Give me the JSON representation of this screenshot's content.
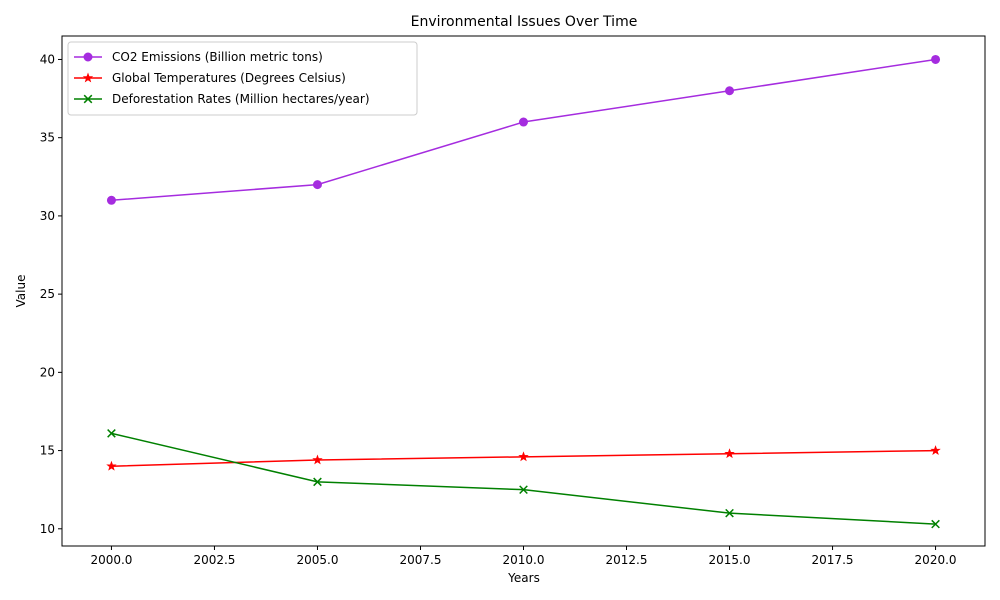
{
  "chart_data": {
    "type": "line",
    "title": "Environmental Issues Over Time",
    "xlabel": "Years",
    "ylabel": "Value",
    "x": [
      2000,
      2005,
      2010,
      2015,
      2020
    ],
    "xlim": [
      1998.8,
      2021.2
    ],
    "ylim": [
      8.9,
      41.5
    ],
    "x_ticks": [
      2000,
      2002.5,
      2005,
      2007.5,
      2010,
      2012.5,
      2015,
      2017.5,
      2020
    ],
    "x_tick_labels": [
      "2000.0",
      "2002.5",
      "2005.0",
      "2007.5",
      "2010.0",
      "2012.5",
      "2015.0",
      "2017.5",
      "2020.0"
    ],
    "y_ticks": [
      10,
      15,
      20,
      25,
      30,
      35,
      40
    ],
    "y_tick_labels": [
      "10",
      "15",
      "20",
      "25",
      "30",
      "35",
      "40"
    ],
    "grid": false,
    "legend_position": "top-left",
    "series": [
      {
        "name": "CO2 Emissions (Billion metric tons)",
        "values": [
          31,
          32,
          36,
          38,
          40
        ],
        "color": "#a52cdf",
        "marker": "circle"
      },
      {
        "name": "Global Temperatures (Degrees Celsius)",
        "values": [
          14.0,
          14.4,
          14.6,
          14.8,
          15.0
        ],
        "color": "#ff0000",
        "marker": "star"
      },
      {
        "name": "Deforestation Rates (Million hectares/year)",
        "values": [
          16.1,
          13.0,
          12.5,
          11.0,
          10.3
        ],
        "color": "#008000",
        "marker": "x"
      }
    ]
  }
}
